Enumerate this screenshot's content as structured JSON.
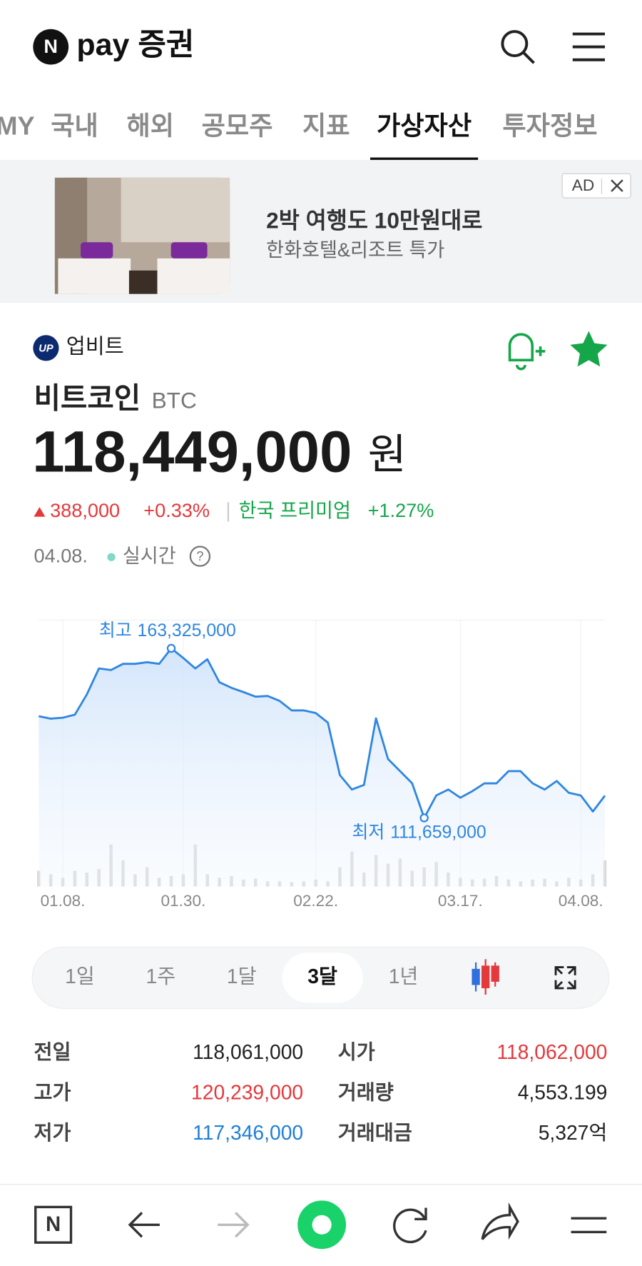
{
  "header": {
    "logo_letter": "N",
    "brand": "pay 증권"
  },
  "tabs": [
    {
      "label": "MY"
    },
    {
      "label": "국내"
    },
    {
      "label": "해외"
    },
    {
      "label": "공모주"
    },
    {
      "label": "지표"
    },
    {
      "label": "가상자산",
      "active": true
    },
    {
      "label": "투자정보"
    }
  ],
  "ad": {
    "badge": "AD",
    "title": "2박 여행도 10만원대로",
    "subtitle": "한화호텔&리조트 특가"
  },
  "asset": {
    "exchange": "업비트",
    "name": "비트코인",
    "symbol": "BTC",
    "price": "118,449,000",
    "currency": "원",
    "change": "388,000",
    "change_pct": "+0.33%",
    "premium_label": "한국 프리미엄",
    "premium": "+1.27%",
    "date": "04.08.",
    "status": "실시간"
  },
  "chart_data": {
    "type": "line",
    "categories": [
      null,
      null,
      "01.08.",
      null,
      null,
      null,
      null,
      null,
      null,
      null,
      null,
      null,
      "01.30.",
      null,
      null,
      null,
      null,
      null,
      null,
      null,
      null,
      null,
      null,
      "02.22.",
      null,
      null,
      null,
      null,
      null,
      null,
      null,
      null,
      null,
      null,
      null,
      "03.17.",
      null,
      null,
      null,
      null,
      null,
      null,
      null,
      null,
      null,
      "04.08.",
      null,
      null
    ],
    "series": [
      {
        "color": "#2f86e0",
        "values": [
          142660000,
          141900000,
          142200000,
          143100000,
          149300000,
          157200000,
          156700000,
          158600000,
          158600000,
          159100000,
          158600000,
          163325000,
          160400000,
          157200000,
          160000000,
          153000000,
          151300000,
          150000000,
          148600000,
          148800000,
          147300000,
          144400000,
          144400000,
          143600000,
          140700000,
          124700000,
          120300000,
          121700000,
          142000000,
          129600000,
          125900000,
          122200000,
          111659000,
          118500000,
          120300000,
          117800000,
          119800000,
          122200000,
          122200000,
          125900000,
          125900000,
          122200000,
          120300000,
          122900000,
          119300000,
          118500000,
          113600000,
          118449000
        ]
      }
    ],
    "volume": {
      "color": "#d9d9d9",
      "values": [
        18,
        14,
        10,
        18,
        16,
        20,
        48,
        30,
        14,
        22,
        10,
        12,
        14,
        48,
        14,
        10,
        12,
        8,
        9,
        6,
        6,
        5,
        6,
        8,
        6,
        22,
        40,
        16,
        36,
        26,
        32,
        18,
        22,
        28,
        16,
        10,
        8,
        9,
        12,
        8,
        6,
        8,
        9,
        6,
        10,
        8,
        14,
        30
      ]
    },
    "annotations": [
      {
        "label": "최고",
        "value_label": "163,325,000"
      },
      {
        "label": "최저",
        "value_label": "111,659,000"
      }
    ]
  },
  "periods": [
    {
      "label": "1일"
    },
    {
      "label": "1주"
    },
    {
      "label": "1달"
    },
    {
      "label": "3달",
      "active": true
    },
    {
      "label": "1년"
    }
  ],
  "stats": [
    {
      "label": "전일",
      "value": "118,061,000"
    },
    {
      "label": "시가",
      "value": "118,062,000",
      "tone": "up"
    },
    {
      "label": "고가",
      "value": "120,239,000",
      "tone": "up"
    },
    {
      "label": "거래량",
      "value": "4,553.199"
    },
    {
      "label": "저가",
      "value": "117,346,000",
      "tone": "down"
    },
    {
      "label": "거래대금",
      "value": "5,327억"
    }
  ]
}
